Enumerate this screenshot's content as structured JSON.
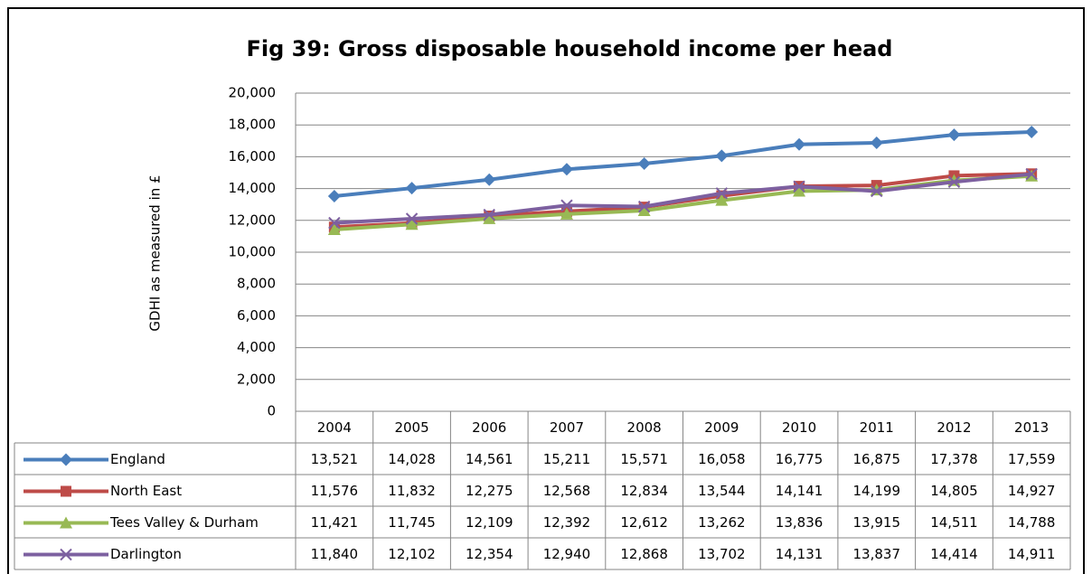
{
  "chart_data": {
    "type": "line",
    "title": "Fig 39: Gross disposable household income per head",
    "y_label": "GDHI as measured in £",
    "categories": [
      "2004",
      "2005",
      "2006",
      "2007",
      "2008",
      "2009",
      "2010",
      "2011",
      "2012",
      "2013"
    ],
    "ylim": [
      0,
      20000
    ],
    "yticks": [
      0,
      {
        "value": 2000,
        "label": "2,000"
      },
      {
        "value": 4000,
        "label": "4,000"
      },
      {
        "value": 6000,
        "label": "6,000"
      },
      {
        "value": 8000,
        "label": "8,000"
      },
      {
        "value": 10000,
        "label": "10,000"
      },
      {
        "value": 12000,
        "label": "12,000"
      },
      {
        "value": 14000,
        "label": "14,000"
      },
      {
        "value": 16000,
        "label": "16,000"
      },
      {
        "value": 18000,
        "label": "18,000"
      },
      {
        "value": 20000,
        "label": "20,000"
      }
    ],
    "grid": true,
    "series": [
      {
        "name": "England",
        "color": "#4a7ebb",
        "marker": "diamond",
        "values": [
          13521,
          14028,
          14561,
          15211,
          15571,
          16058,
          16775,
          16875,
          17378,
          17559
        ],
        "value_labels": [
          "13,521",
          "14,028",
          "14,561",
          "15,211",
          "15,571",
          "16,058",
          "16,775",
          "16,875",
          "17,378",
          "17,559"
        ]
      },
      {
        "name": "North East",
        "color": "#be4b48",
        "marker": "square",
        "values": [
          11576,
          11832,
          12275,
          12568,
          12834,
          13544,
          14141,
          14199,
          14805,
          14927
        ],
        "value_labels": [
          "11,576",
          "11,832",
          "12,275",
          "12,568",
          "12,834",
          "13,544",
          "14,141",
          "14,199",
          "14,805",
          "14,927"
        ]
      },
      {
        "name": "Tees Valley & Durham",
        "color": "#98b954",
        "marker": "triangle",
        "values": [
          11421,
          11745,
          12109,
          12392,
          12612,
          13262,
          13836,
          13915,
          14511,
          14788
        ],
        "value_labels": [
          "11,421",
          "11,745",
          "12,109",
          "12,392",
          "12,612",
          "13,262",
          "13,836",
          "13,915",
          "14,511",
          "14,788"
        ]
      },
      {
        "name": "Darlington",
        "color": "#7d60a0",
        "marker": "x",
        "values": [
          11840,
          12102,
          12354,
          12940,
          12868,
          13702,
          14131,
          13837,
          14414,
          14911
        ],
        "value_labels": [
          "11,840",
          "12,102",
          "12,354",
          "12,940",
          "12,868",
          "13,702",
          "14,131",
          "13,837",
          "14,414",
          "14,911"
        ]
      }
    ]
  }
}
